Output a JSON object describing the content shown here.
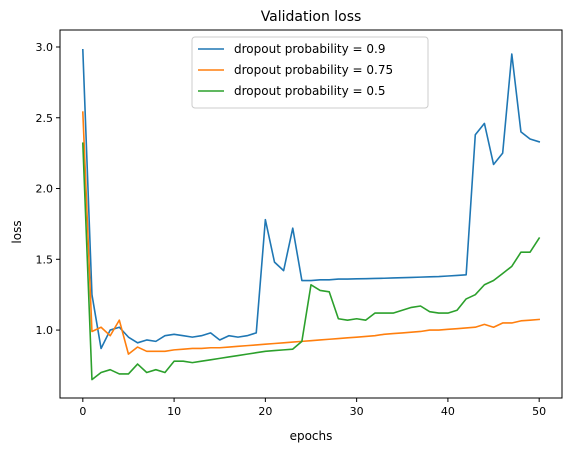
{
  "chart_data": {
    "type": "line",
    "title": "Validation loss",
    "xlabel": "epochs",
    "ylabel": "loss",
    "xlim": [
      -2.5,
      52.5
    ],
    "ylim": [
      0.52,
      3.12
    ],
    "xticks": [
      0,
      10,
      20,
      30,
      40,
      50
    ],
    "yticks": [
      1.0,
      1.5,
      2.0,
      2.5,
      3.0
    ],
    "ytick_labels": [
      "1.0",
      "1.5",
      "2.0",
      "2.5",
      "3.0"
    ],
    "legend_position": "top-center",
    "grid": false,
    "x": [
      0,
      1,
      2,
      3,
      4,
      5,
      6,
      7,
      8,
      9,
      10,
      11,
      12,
      13,
      14,
      15,
      16,
      17,
      18,
      19,
      20,
      21,
      22,
      23,
      24,
      25,
      26,
      27,
      28,
      29,
      30,
      31,
      32,
      33,
      34,
      35,
      36,
      37,
      38,
      39,
      40,
      41,
      42,
      43,
      44,
      45,
      46,
      47,
      48,
      49,
      50
    ],
    "series": [
      {
        "name": "dropout probability = 0.9",
        "color": "#1f77b4",
        "values": [
          2.98,
          1.25,
          0.87,
          1.0,
          1.02,
          0.95,
          0.91,
          0.93,
          0.92,
          0.96,
          0.97,
          0.96,
          0.95,
          0.96,
          0.98,
          0.93,
          0.96,
          0.95,
          0.96,
          0.98,
          1.78,
          1.48,
          1.42,
          1.72,
          1.35,
          1.35,
          1.355,
          1.355,
          1.36,
          1.36,
          1.362,
          1.363,
          1.365,
          1.366,
          1.368,
          1.37,
          1.372,
          1.374,
          1.376,
          1.378,
          1.382,
          1.386,
          1.39,
          2.38,
          2.46,
          2.17,
          2.25,
          2.95,
          2.4,
          2.35,
          2.33
        ]
      },
      {
        "name": "dropout probability = 0.75",
        "color": "#ff7f0e",
        "values": [
          2.54,
          0.99,
          1.02,
          0.96,
          1.07,
          0.83,
          0.88,
          0.85,
          0.85,
          0.85,
          0.86,
          0.865,
          0.87,
          0.87,
          0.875,
          0.875,
          0.88,
          0.885,
          0.89,
          0.895,
          0.9,
          0.905,
          0.91,
          0.915,
          0.92,
          0.925,
          0.93,
          0.935,
          0.94,
          0.945,
          0.95,
          0.955,
          0.96,
          0.97,
          0.975,
          0.98,
          0.985,
          0.99,
          1.0,
          1.0,
          1.005,
          1.01,
          1.015,
          1.02,
          1.04,
          1.02,
          1.05,
          1.05,
          1.065,
          1.07,
          1.075
        ]
      },
      {
        "name": "dropout probability = 0.5",
        "color": "#2ca02c",
        "values": [
          2.32,
          0.65,
          0.7,
          0.72,
          0.69,
          0.69,
          0.76,
          0.7,
          0.72,
          0.7,
          0.78,
          0.78,
          0.77,
          0.78,
          0.79,
          0.8,
          0.81,
          0.82,
          0.83,
          0.84,
          0.85,
          0.855,
          0.86,
          0.865,
          0.92,
          1.32,
          1.28,
          1.27,
          1.08,
          1.07,
          1.08,
          1.07,
          1.12,
          1.12,
          1.12,
          1.14,
          1.16,
          1.17,
          1.13,
          1.12,
          1.12,
          1.14,
          1.22,
          1.25,
          1.32,
          1.35,
          1.4,
          1.45,
          1.55,
          1.55,
          1.65
        ]
      }
    ]
  }
}
